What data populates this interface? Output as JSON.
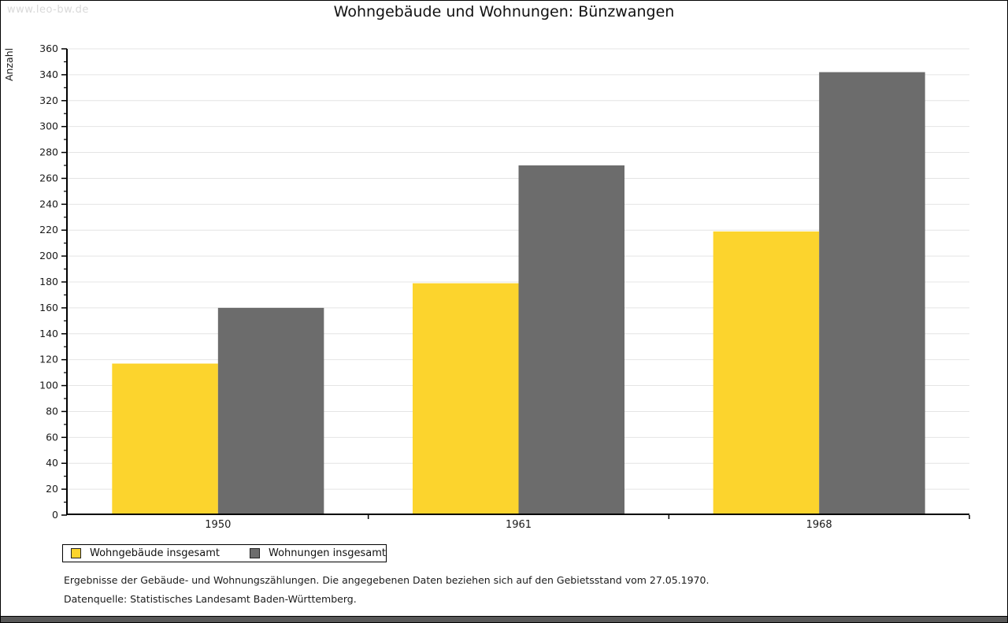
{
  "watermark": "www.leo-bw.de",
  "chart_data": {
    "type": "bar",
    "title": "Wohngebäude und Wohnungen: Bünzwangen",
    "ylabel": "Anzahl",
    "xlabel": "",
    "categories": [
      "1950",
      "1961",
      "1968"
    ],
    "series": [
      {
        "name": "Wohngebäude insgesamt",
        "color": "#FCD42D",
        "values": [
          117,
          179,
          219
        ]
      },
      {
        "name": "Wohnungen insgesamt",
        "color": "#6C6C6C",
        "values": [
          160,
          270,
          342
        ]
      }
    ],
    "ylim": [
      0,
      360
    ],
    "ytick_step": 20,
    "yminor_step": 10,
    "grid": true,
    "legend_position": "bottom-left"
  },
  "footer": {
    "line1": "Ergebnisse der Gebäude- und Wohnungszählungen. Die angegebenen Daten beziehen sich auf den Gebietsstand vom 27.05.1970.",
    "line2": "Datenquelle: Statistisches Landesamt Baden-Württemberg."
  },
  "colors": {
    "bar_yellow": "#FCD42D",
    "bar_gray": "#6C6C6C",
    "gridline": "#E4E4E4",
    "axis": "#000000",
    "watermark_text": "#D9D9D9",
    "bottom_strip": "#585858"
  }
}
